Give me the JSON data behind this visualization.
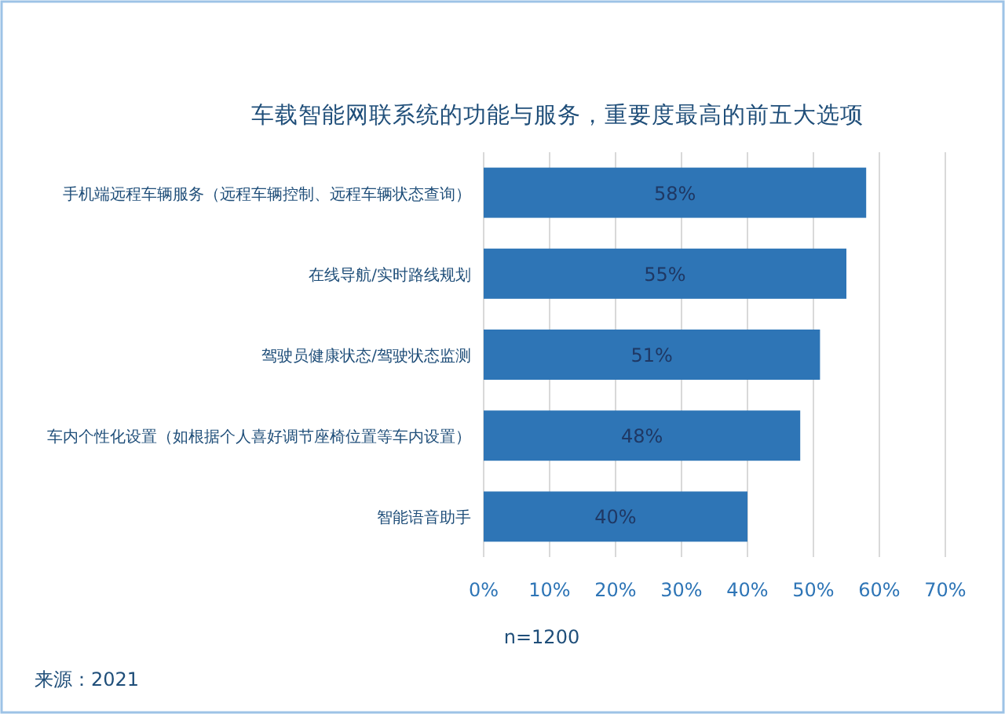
{
  "chart_data": {
    "type": "bar",
    "orientation": "horizontal",
    "title": "车载智能网联系统的功能与服务，重要度最高的前五大选项",
    "categories": [
      "手机端远程车辆服务（远程车辆控制、远程车辆状态查询）",
      "在线导航/实时路线规划",
      "驾驶员健康状态/驾驶状态监测",
      "车内个性化设置（如根据个人喜好调节座椅位置等车内设置）",
      "智能语音助手"
    ],
    "values": [
      58,
      55,
      51,
      48,
      40
    ],
    "value_labels": [
      "58%",
      "55%",
      "51%",
      "48%",
      "40%"
    ],
    "color": "#2e75b6",
    "xlim": [
      0,
      70
    ],
    "xticks": [
      {
        "value": 0,
        "label": "0%"
      },
      {
        "value": 10,
        "label": "10%"
      },
      {
        "value": 20,
        "label": "20%"
      },
      {
        "value": 30,
        "label": "30%"
      },
      {
        "value": 40,
        "label": "40%"
      },
      {
        "value": 50,
        "label": "50%"
      },
      {
        "value": 60,
        "label": "60%"
      },
      {
        "value": 70,
        "label": "70%"
      }
    ],
    "grid": "x",
    "annotations": [
      "n=1200",
      "来源：2021"
    ]
  }
}
